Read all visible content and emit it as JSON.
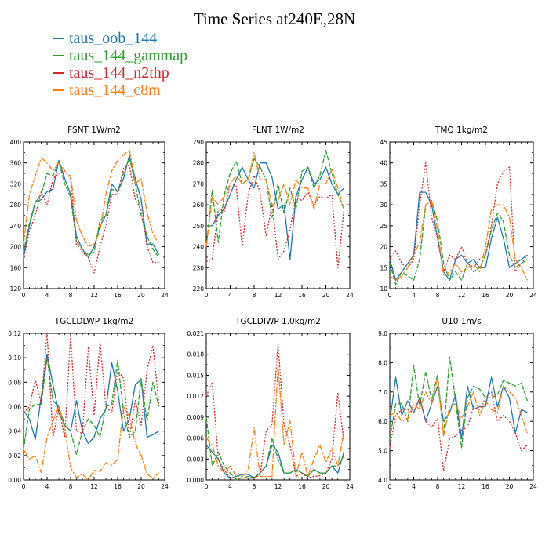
{
  "title": "Time Series at240E,28N",
  "legend": [
    {
      "name": "taus_oob_144",
      "color": "#1f77b4"
    },
    {
      "name": "taus_144_gammap",
      "color": "#2ca02c"
    },
    {
      "name": "taus_144_n2thp",
      "color": "#d62728"
    },
    {
      "name": "taus_144_c8m",
      "color": "#ff7f0e"
    }
  ],
  "chart_data": [
    {
      "type": "line",
      "title": "FSNT   1W/m2",
      "x": [
        0,
        1,
        2,
        3,
        4,
        5,
        6,
        7,
        8,
        9,
        10,
        11,
        12,
        13,
        14,
        15,
        16,
        17,
        18,
        19,
        20,
        21,
        22,
        23
      ],
      "xlim": [
        0,
        24
      ],
      "xticks": [
        0,
        4,
        8,
        12,
        16,
        20,
        24
      ],
      "ylim": [
        120,
        400
      ],
      "yticks": [
        120,
        160,
        200,
        240,
        280,
        320,
        360,
        400
      ],
      "ytick_labels": [
        "120",
        "160",
        "200",
        "240",
        "280",
        "320",
        "360",
        "400"
      ],
      "series": [
        {
          "name": "taus_oob_144",
          "values": [
            180,
            240,
            285,
            290,
            305,
            310,
            365,
            330,
            300,
            220,
            195,
            180,
            200,
            240,
            260,
            320,
            305,
            330,
            375,
            330,
            290,
            205,
            205,
            185
          ]
        },
        {
          "name": "taus_144_gammap",
          "values": [
            190,
            245,
            285,
            300,
            340,
            335,
            363,
            320,
            295,
            210,
            195,
            185,
            190,
            250,
            260,
            310,
            305,
            340,
            370,
            320,
            260,
            220,
            195,
            180
          ]
        },
        {
          "name": "taus_144_n2thp",
          "values": [
            175,
            230,
            260,
            305,
            280,
            330,
            340,
            345,
            330,
            205,
            190,
            180,
            150,
            200,
            240,
            300,
            300,
            350,
            355,
            290,
            270,
            200,
            170,
            170
          ]
        },
        {
          "name": "taus_144_c8m",
          "values": [
            205,
            300,
            335,
            370,
            360,
            345,
            360,
            345,
            335,
            250,
            220,
            200,
            205,
            230,
            300,
            345,
            365,
            375,
            385,
            320,
            330,
            265,
            225,
            205
          ]
        }
      ]
    },
    {
      "type": "line",
      "title": "FLNT   1W/m2",
      "x": [
        0,
        1,
        2,
        3,
        4,
        5,
        6,
        7,
        8,
        9,
        10,
        11,
        12,
        13,
        14,
        15,
        16,
        17,
        18,
        19,
        20,
        21,
        22,
        23
      ],
      "xlim": [
        0,
        24
      ],
      "xticks": [
        0,
        4,
        8,
        12,
        16,
        20,
        24
      ],
      "ylim": [
        220,
        290
      ],
      "yticks": [
        220,
        230,
        240,
        250,
        260,
        270,
        280,
        290
      ],
      "ytick_labels": [
        "220",
        "230",
        "240",
        "250",
        "260",
        "270",
        "280",
        "290"
      ],
      "series": [
        {
          "name": "taus_oob_144",
          "values": [
            250,
            250,
            255,
            258,
            265,
            272,
            278,
            272,
            268,
            280,
            280,
            273,
            258,
            260,
            234,
            264,
            272,
            278,
            270,
            272,
            278,
            270,
            265,
            268
          ]
        },
        {
          "name": "taus_144_gammap",
          "values": [
            240,
            267,
            242,
            265,
            275,
            281,
            270,
            272,
            282,
            278,
            272,
            254,
            270,
            256,
            268,
            258,
            276,
            278,
            268,
            274,
            286,
            275,
            265,
            258
          ]
        },
        {
          "name": "taus_144_n2thp",
          "values": [
            233,
            234,
            258,
            257,
            270,
            269,
            240,
            265,
            274,
            266,
            245,
            260,
            234,
            238,
            248,
            264,
            262,
            266,
            260,
            264,
            263,
            265,
            230,
            257
          ]
        },
        {
          "name": "taus_144_c8m",
          "values": [
            240,
            264,
            260,
            264,
            270,
            274,
            270,
            272,
            285,
            272,
            272,
            260,
            262,
            270,
            260,
            272,
            268,
            268,
            258,
            270,
            270,
            277,
            268,
            258
          ]
        }
      ]
    },
    {
      "type": "line",
      "title": "TMQ   1kg/m2",
      "x": [
        0,
        1,
        2,
        3,
        4,
        5,
        6,
        7,
        8,
        9,
        10,
        11,
        12,
        13,
        14,
        15,
        16,
        17,
        18,
        19,
        20,
        21,
        22,
        23
      ],
      "xlim": [
        0,
        24
      ],
      "xticks": [
        0,
        4,
        8,
        12,
        16,
        20,
        24
      ],
      "ylim": [
        10,
        45
      ],
      "yticks": [
        10,
        15,
        20,
        25,
        30,
        35,
        40,
        45
      ],
      "ytick_labels": [
        "10",
        "15",
        "20",
        "25",
        "30",
        "35",
        "40",
        "45"
      ],
      "series": [
        {
          "name": "taus_oob_144",
          "values": [
            17,
            12,
            14,
            16,
            18,
            33,
            33,
            30,
            22,
            14,
            12,
            17,
            18,
            16,
            17,
            15,
            15,
            22,
            27,
            22,
            15,
            16,
            17,
            18
          ]
        },
        {
          "name": "taus_144_gammap",
          "values": [
            16,
            11,
            14,
            13,
            12,
            17,
            30,
            31,
            26,
            16,
            12,
            14,
            12,
            16,
            14,
            15,
            18,
            24,
            28,
            26,
            18,
            15,
            16,
            17
          ]
        },
        {
          "name": "taus_144_n2thp",
          "values": [
            17,
            19,
            16,
            15,
            17,
            30,
            40,
            27,
            22,
            14,
            18,
            17,
            20,
            16,
            15,
            17,
            18,
            25,
            35,
            38,
            39,
            14,
            16,
            18
          ]
        },
        {
          "name": "taus_144_c8m",
          "values": [
            13,
            12,
            13,
            15,
            18,
            21,
            30,
            31,
            24,
            13,
            14,
            16,
            14,
            15,
            16,
            14,
            20,
            29,
            30,
            30,
            27,
            17,
            15,
            12
          ]
        }
      ]
    },
    {
      "type": "line",
      "title": "TGCLDLWP   1kg/m2",
      "x": [
        0,
        1,
        2,
        3,
        4,
        5,
        6,
        7,
        8,
        9,
        10,
        11,
        12,
        13,
        14,
        15,
        16,
        17,
        18,
        19,
        20,
        21,
        22,
        23
      ],
      "xlim": [
        0,
        24
      ],
      "xticks": [
        0,
        4,
        8,
        12,
        16,
        20,
        24
      ],
      "ylim": [
        0,
        0.12
      ],
      "yticks": [
        0,
        0.02,
        0.04,
        0.06,
        0.08,
        0.1,
        0.12
      ],
      "ytick_labels": [
        "0.00",
        "0.02",
        "0.04",
        "0.06",
        "0.08",
        "0.10",
        "0.12"
      ],
      "series": [
        {
          "name": "taus_oob_144",
          "values": [
            0.057,
            0.05,
            0.033,
            0.068,
            0.103,
            0.078,
            0.055,
            0.045,
            0.04,
            0.065,
            0.04,
            0.03,
            0.035,
            0.05,
            0.058,
            0.096,
            0.073,
            0.04,
            0.05,
            0.078,
            0.082,
            0.035,
            0.037,
            0.04
          ]
        },
        {
          "name": "taus_144_gammap",
          "values": [
            0.025,
            0.058,
            0.062,
            0.062,
            0.1,
            0.065,
            0.06,
            0.045,
            0.04,
            0.021,
            0.04,
            0.05,
            0.045,
            0.035,
            0.06,
            0.062,
            0.098,
            0.055,
            0.035,
            0.04,
            0.083,
            0.048,
            0.08,
            0.06
          ]
        },
        {
          "name": "taus_144_n2thp",
          "values": [
            0.055,
            0.06,
            0.082,
            0.063,
            0.12,
            0.035,
            0.058,
            0.035,
            0.118,
            0.04,
            0.038,
            0.108,
            0.053,
            0.113,
            0.06,
            0.055,
            0.09,
            0.083,
            0.035,
            0.065,
            0.045,
            0.09,
            0.11,
            0.062
          ]
        },
        {
          "name": "taus_144_c8m",
          "values": [
            0.025,
            0.017,
            0.02,
            0.006,
            0.035,
            0.048,
            0.06,
            0.042,
            0.01,
            0.002,
            0.005,
            0,
            0.008,
            0.007,
            0.014,
            0.012,
            0.017,
            0.06,
            0.052,
            0.03,
            0.02,
            0.005,
            0.001,
            0.006
          ]
        }
      ]
    },
    {
      "type": "line",
      "title": "TGCLDIWP   1.0kg/m2",
      "x": [
        0,
        1,
        2,
        3,
        4,
        5,
        6,
        7,
        8,
        9,
        10,
        11,
        12,
        13,
        14,
        15,
        16,
        17,
        18,
        19,
        20,
        21,
        22,
        23
      ],
      "xlim": [
        0,
        24
      ],
      "xticks": [
        0,
        4,
        8,
        12,
        16,
        20,
        24
      ],
      "ylim": [
        0,
        0.021
      ],
      "yticks": [
        0,
        0.003,
        0.006,
        0.009,
        0.012,
        0.015,
        0.018,
        0.021
      ],
      "ytick_labels": [
        "0.000",
        "0.003",
        "0.006",
        "0.009",
        "0.012",
        "0.015",
        "0.018",
        "0.021"
      ],
      "series": [
        {
          "name": "taus_oob_144",
          "values": [
            0.005,
            0.004,
            0.003,
            0.001,
            0.0002,
            0.0005,
            0.0008,
            0.0008,
            0.0003,
            0.001,
            0.002,
            0.005,
            0.004,
            0.001,
            0.001,
            0.0015,
            0.001,
            0.0005,
            0.0015,
            0.001,
            0.001,
            0.002,
            0.001,
            0.004
          ]
        },
        {
          "name": "taus_144_gammap",
          "values": [
            0.009,
            0.002,
            0.004,
            0.002,
            0.001,
            0,
            0.0003,
            0.0005,
            0.0003,
            0.001,
            0.002,
            0.006,
            0.003,
            0.001,
            0.001,
            0.0015,
            0.001,
            0.0005,
            0.0015,
            0.001,
            0.001,
            0.002,
            0.002,
            0.0035
          ]
        },
        {
          "name": "taus_144_n2thp",
          "values": [
            0.012,
            0.014,
            0.003,
            0.0015,
            0.0003,
            0.0002,
            0.0003,
            0.0002,
            0.0003,
            0.0007,
            0.007,
            0.008,
            0.0195,
            0.008,
            0.005,
            0.0005,
            0.001,
            0.0003,
            0.0005,
            0.0006,
            0.001,
            0.003,
            0.0125,
            0.0055
          ]
        },
        {
          "name": "taus_144_c8m",
          "values": [
            0.006,
            0.005,
            0.002,
            0.001,
            0.002,
            0.0005,
            0.0005,
            0.0015,
            0.0075,
            0.0005,
            0.0005,
            0.0005,
            0.0165,
            0.005,
            0.0085,
            0.0005,
            0.004,
            0.0005,
            0.003,
            0.005,
            0.0025,
            0.0045,
            0.002,
            0.007
          ]
        }
      ]
    },
    {
      "type": "line",
      "title": "U10   1m/s",
      "x": [
        0,
        1,
        2,
        3,
        4,
        5,
        6,
        7,
        8,
        9,
        10,
        11,
        12,
        13,
        14,
        15,
        16,
        17,
        18,
        19,
        20,
        21,
        22,
        23
      ],
      "xlim": [
        0,
        24
      ],
      "xticks": [
        0,
        4,
        8,
        12,
        16,
        20,
        24
      ],
      "ylim": [
        4,
        9
      ],
      "yticks": [
        4,
        5,
        6,
        7,
        8,
        9
      ],
      "ytick_labels": [
        "4.0",
        "5.0",
        "6.0",
        "7.0",
        "8.0",
        "9.0"
      ],
      "series": [
        {
          "name": "taus_oob_144",
          "values": [
            6.0,
            7.5,
            6.2,
            6.7,
            6.3,
            6.8,
            6.0,
            6.6,
            7.2,
            6.0,
            6.3,
            6.9,
            5.4,
            7.2,
            6.4,
            6.5,
            6.5,
            7.5,
            6.5,
            7.2,
            6.8,
            5.6,
            6.4,
            6.3
          ]
        },
        {
          "name": "taus_144_gammap",
          "values": [
            5.4,
            6.6,
            6.6,
            6.0,
            7.9,
            6.5,
            7.7,
            6.7,
            7.6,
            5.5,
            8.2,
            6.7,
            5.1,
            6.8,
            7.2,
            7.1,
            6.8,
            6.8,
            6.9,
            7.4,
            7.3,
            7.2,
            7.3,
            6.7
          ]
        },
        {
          "name": "taus_144_n2thp",
          "values": [
            5.1,
            6.2,
            6.4,
            6.4,
            6.3,
            6.8,
            6.0,
            5.8,
            6.1,
            4.3,
            5.4,
            5.5,
            5.7,
            5.8,
            6.5,
            6.4,
            6.8,
            7.0,
            6.0,
            6.2,
            6.0,
            5.6,
            5.0,
            5.2
          ]
        },
        {
          "name": "taus_144_c8m",
          "values": [
            6.2,
            6.3,
            6.0,
            6.1,
            6.6,
            6.4,
            7.0,
            6.6,
            7.5,
            5.5,
            6.5,
            6.6,
            6.1,
            6.5,
            7.0,
            6.2,
            6.7,
            6.4,
            6.3,
            7.2,
            7.0,
            6.8,
            6.2,
            5.6
          ]
        }
      ]
    }
  ]
}
